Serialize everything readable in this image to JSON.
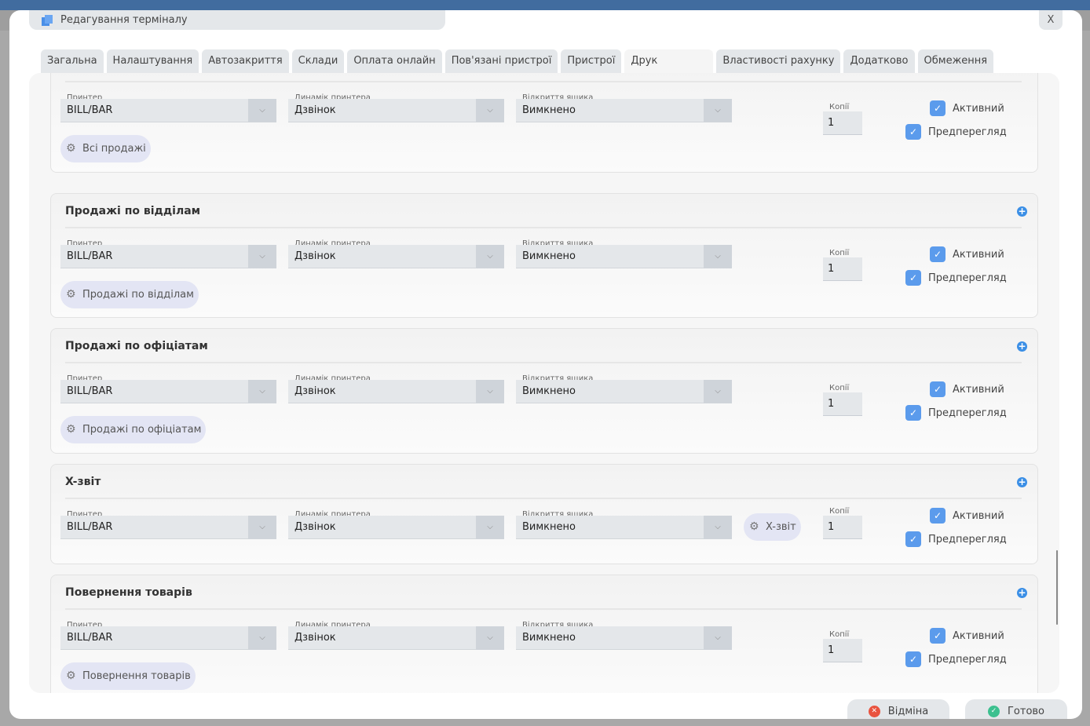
{
  "window": {
    "title": "Редагування терміналу",
    "close_label": "X"
  },
  "tabs": [
    {
      "label": "Загальна"
    },
    {
      "label": "Налаштування"
    },
    {
      "label": "Автозакриття"
    },
    {
      "label": "Склади"
    },
    {
      "label": "Оплата онлайн"
    },
    {
      "label": "Пов'язані пристрої"
    },
    {
      "label": "Пристрої"
    },
    {
      "label": "Друк",
      "active": true
    },
    {
      "label": "Властивості рахунку"
    },
    {
      "label": "Додатково"
    },
    {
      "label": "Обмеження"
    }
  ],
  "field_labels": {
    "printer": "Принтер",
    "speaker": "Динамік принтера",
    "drawer": "Відкриття ящика",
    "copies": "Копії",
    "active": "Активний",
    "preview": "Предперегляд"
  },
  "sections": [
    {
      "title": "",
      "printer": "BILL/BAR",
      "speaker": "Дзвінок",
      "drawer": "Вимкнено",
      "copies": "1",
      "active": true,
      "preview": true,
      "button": "Всі продажі",
      "button_inline": false
    },
    {
      "title": "Продажі по відділам",
      "printer": "BILL/BAR",
      "speaker": "Дзвінок",
      "drawer": "Вимкнено",
      "copies": "1",
      "active": true,
      "preview": true,
      "button": "Продажі по відділам",
      "button_inline": false
    },
    {
      "title": "Продажі по офіціатам",
      "printer": "BILL/BAR",
      "speaker": "Дзвінок",
      "drawer": "Вимкнено",
      "copies": "1",
      "active": true,
      "preview": true,
      "button": "Продажі по офіціатам",
      "button_inline": false
    },
    {
      "title": "X-звіт",
      "printer": "BILL/BAR",
      "speaker": "Дзвінок",
      "drawer": "Вимкнено",
      "copies": "1",
      "active": true,
      "preview": true,
      "button": "X-звіт",
      "button_inline": true
    },
    {
      "title": "Повернення товарів",
      "printer": "BILL/BAR",
      "speaker": "Дзвінок",
      "drawer": "Вимкнено",
      "copies": "1",
      "active": true,
      "preview": true,
      "button": "Повернення товарів",
      "button_inline": false
    }
  ],
  "footer": {
    "cancel_label": "Відміна",
    "done_label": "Готово"
  },
  "colors": {
    "accent": "#5b9bec",
    "cancel": "#e9533f",
    "done": "#3cc08f",
    "header": "#416c9f"
  }
}
